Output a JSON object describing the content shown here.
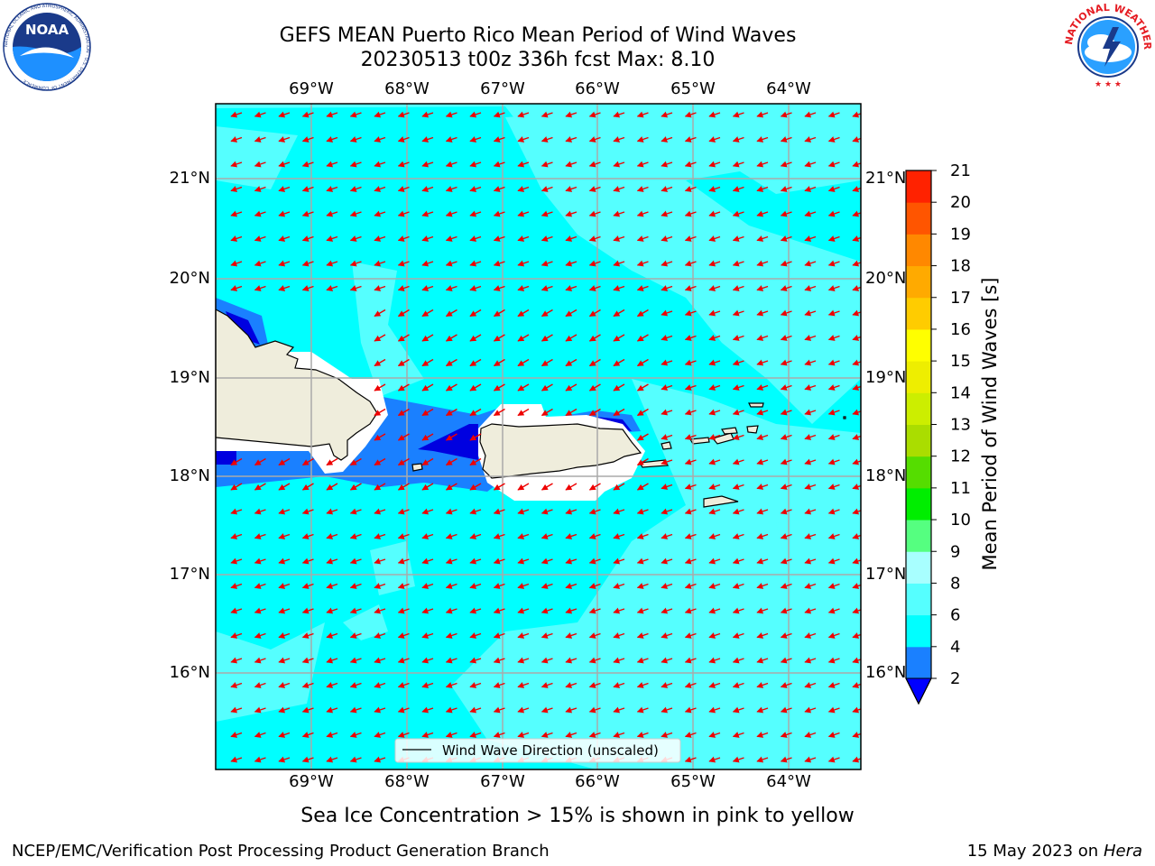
{
  "title_line1": "GEFS MEAN Puerto Rico Mean Period of Wind Waves",
  "title_line2": "20230513 t00z 336h fcst   Max: 8.10",
  "logos": {
    "left": "noaa-logo",
    "right": "national-weather-service-logo",
    "left_text": "NOAA",
    "right_ring": "NATIONAL WEATHER SERVICE",
    "left_ring": "NATIONAL OCEANIC AND ATMOSPHERIC ADMINISTRATION · U.S. DEPARTMENT OF COMMERCE"
  },
  "map": {
    "lon_range": [
      -70.0,
      -63.25
    ],
    "lat_range": [
      15.0,
      21.75
    ],
    "lon_ticks": [
      "69°W",
      "68°W",
      "67°W",
      "66°W",
      "65°W",
      "64°W"
    ],
    "lat_ticks": [
      "21°N",
      "20°N",
      "19°N",
      "18°N",
      "17°N",
      "16°N"
    ],
    "grid": true,
    "legend_label": "Wind Wave Direction (unscaled)",
    "legend_placement": "bottom-center",
    "colors": {
      "land": "#efeddc",
      "sea_4_6": "#00ffff",
      "sea_6_8": "#55ffff",
      "sea_2_4": "#1a7fff",
      "sea_lt2": "#0000e0",
      "arrow": "#ee0000"
    },
    "wind_direction": "toward west-southwest"
  },
  "colorbar": {
    "label": "Mean Period of Wind Waves [s]",
    "ticks": [
      "2",
      "4",
      "6",
      "8",
      "9",
      "10",
      "11",
      "12",
      "13",
      "14",
      "15",
      "16",
      "17",
      "18",
      "19",
      "20",
      "21"
    ],
    "colors": [
      "#1a80ff",
      "#00ffff",
      "#55ffff",
      "#a8ffff",
      "#55ff80",
      "#00ee00",
      "#55dd00",
      "#aadd00",
      "#ccee00",
      "#eeee00",
      "#ffff00",
      "#ffcc00",
      "#ffaa00",
      "#ff8800",
      "#ff5500",
      "#ff2200"
    ],
    "extend_low_color": "#0000ff"
  },
  "subtitle": "Sea Ice Concentration > 15% is shown in pink to yellow",
  "footer_left": "NCEP/EMC/Verification Post Processing Product Generation Branch",
  "footer_date": "15 May 2023 on",
  "footer_machine": "Hera"
}
